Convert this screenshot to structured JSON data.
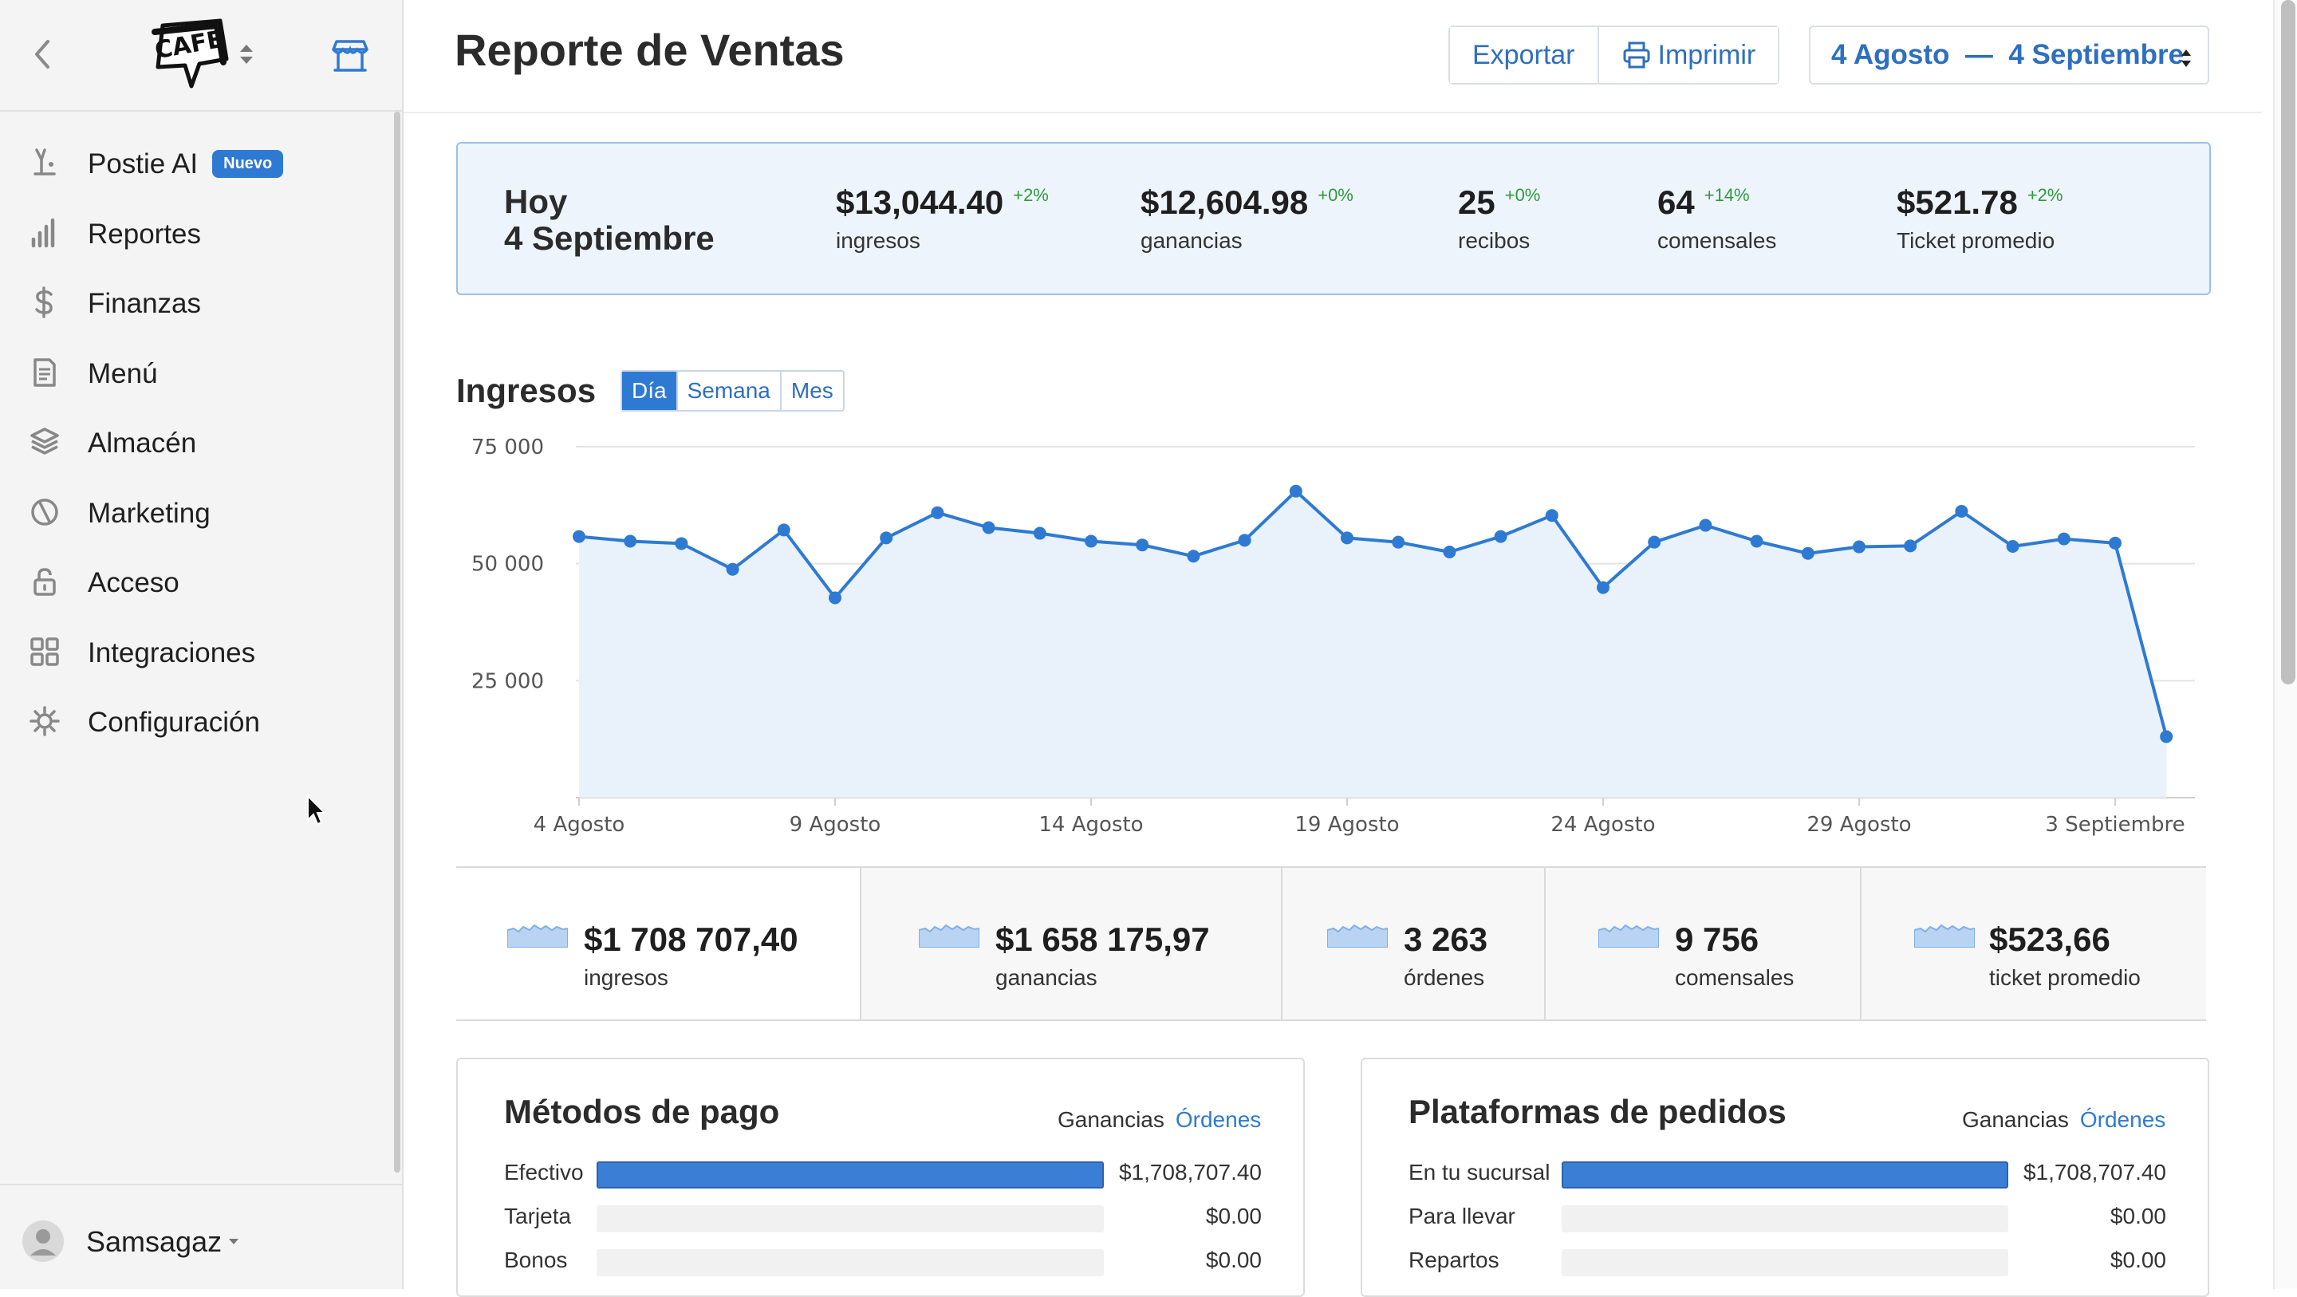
{
  "sidebar": {
    "items": [
      {
        "label": "Postie AI",
        "icon": "postie-ai-icon",
        "badge": "Nuevo"
      },
      {
        "label": "Reportes",
        "icon": "bar-chart-icon"
      },
      {
        "label": "Finanzas",
        "icon": "dollar-icon"
      },
      {
        "label": "Menú",
        "icon": "document-icon"
      },
      {
        "label": "Almacén",
        "icon": "layers-icon"
      },
      {
        "label": "Marketing",
        "icon": "marketing-icon"
      },
      {
        "label": "Acceso",
        "icon": "lock-icon"
      },
      {
        "label": "Integraciones",
        "icon": "grid-icon"
      },
      {
        "label": "Configuración",
        "icon": "gear-icon"
      }
    ],
    "user": {
      "name": "Samsagaz"
    }
  },
  "header": {
    "title": "Reporte de Ventas",
    "export_label": "Exportar",
    "print_label": "Imprimir",
    "date_range": "4 Agosto  —  4 Septiembre"
  },
  "today": {
    "title_line1": "Hoy",
    "title_line2": "4 Septiembre",
    "kpis": [
      {
        "value": "$13,044.40",
        "delta": "+2%",
        "label": "ingresos"
      },
      {
        "value": "$12,604.98",
        "delta": "+0%",
        "label": "ganancias"
      },
      {
        "value": "25",
        "delta": "+0%",
        "label": "recibos"
      },
      {
        "value": "64",
        "delta": "+14%",
        "label": "comensales"
      },
      {
        "value": "$521.78",
        "delta": "+2%",
        "label": "Ticket promedio"
      }
    ]
  },
  "ingresos": {
    "title": "Ingresos",
    "tabs": [
      "Día",
      "Semana",
      "Mes"
    ],
    "active_tab": "Día"
  },
  "chart_data": {
    "type": "area",
    "title": "Ingresos",
    "xlabel": "",
    "ylabel": "",
    "ylim": [
      0,
      75000
    ],
    "yticks": [
      25000,
      50000,
      75000
    ],
    "ytick_labels": [
      "25 000",
      "50 000",
      "75 000"
    ],
    "xtick_labels": [
      "4 Agosto",
      "9 Agosto",
      "14 Agosto",
      "19 Agosto",
      "24 Agosto",
      "29 Agosto",
      "3 Septiembre"
    ],
    "xtick_indices": [
      0,
      5,
      10,
      15,
      20,
      25,
      30
    ],
    "grid": true,
    "color": "#2e7ad2",
    "values": [
      55800,
      54800,
      54300,
      48800,
      57200,
      42700,
      55500,
      60900,
      57700,
      56500,
      54800,
      54000,
      51600,
      55000,
      65500,
      55500,
      54600,
      52500,
      55800,
      60300,
      44900,
      54600,
      58200,
      54800,
      52200,
      53600,
      53800,
      61200,
      53700,
      55300,
      54400,
      13044
    ]
  },
  "summary": [
    {
      "value": "$1 708 707,40",
      "label": "ingresos"
    },
    {
      "value": "$1 658 175,97",
      "label": "ganancias"
    },
    {
      "value": "3 263",
      "label": "órdenes"
    },
    {
      "value": "9 756",
      "label": "comensales"
    },
    {
      "value": "$523,66",
      "label": "ticket promedio"
    }
  ],
  "payment_methods": {
    "title": "Métodos de pago",
    "toggle_a": "Ganancias",
    "toggle_b": "Órdenes",
    "rows": [
      {
        "label": "Efectivo",
        "value": "$1,708,707.40",
        "fraction": 1.0
      },
      {
        "label": "Tarjeta",
        "value": "$0.00",
        "fraction": 0
      },
      {
        "label": "Bonos",
        "value": "$0.00",
        "fraction": 0
      }
    ]
  },
  "order_platforms": {
    "title": "Plataformas de pedidos",
    "toggle_a": "Ganancias",
    "toggle_b": "Órdenes",
    "rows": [
      {
        "label": "En tu sucursal",
        "value": "$1,708,707.40",
        "fraction": 1.0
      },
      {
        "label": "Para llevar",
        "value": "$0.00",
        "fraction": 0
      },
      {
        "label": "Repartos",
        "value": "$0.00",
        "fraction": 0
      }
    ]
  }
}
